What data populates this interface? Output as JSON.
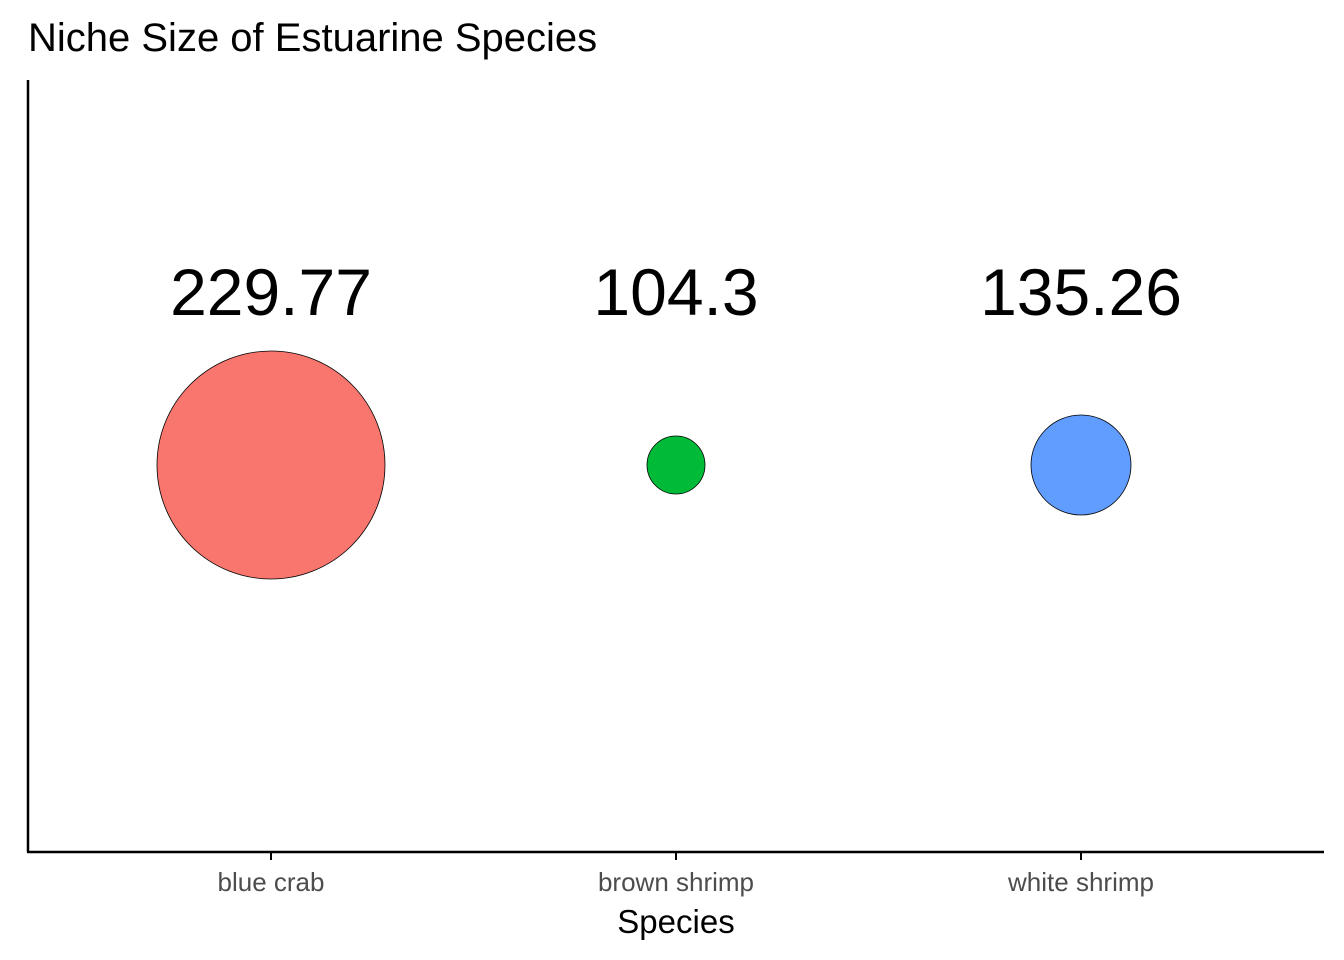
{
  "chart_data": {
    "type": "scatter",
    "title": "Niche Size of Estuarine Species",
    "xlabel": "Species",
    "ylabel": "",
    "categories": [
      "blue crab",
      "brown shrimp",
      "white shrimp"
    ],
    "values": [
      229.77,
      104.3,
      135.26
    ],
    "value_labels": [
      "229.77",
      "104.3",
      "135.26"
    ],
    "colors": [
      "#F8766D",
      "#00BA38",
      "#619CFF"
    ],
    "grid": false,
    "legend": "none",
    "marker": "circle sized by niche size"
  }
}
